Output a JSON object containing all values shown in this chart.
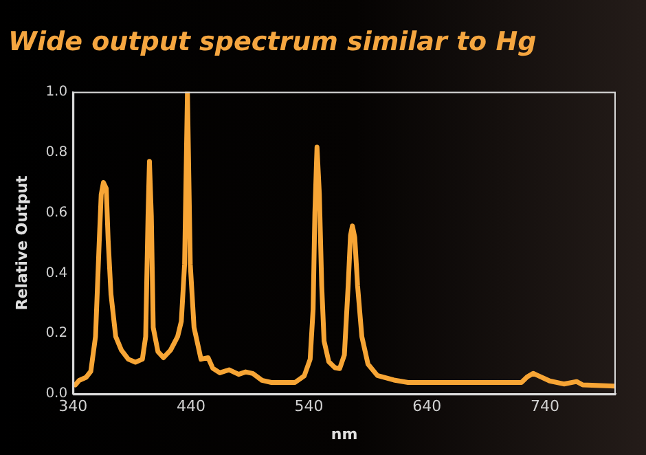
{
  "chart_data": {
    "type": "line",
    "title": "Wide output spectrum similar to Hg",
    "xlabel": "nm",
    "ylabel": "Relative Output",
    "xlim": [
      340,
      800
    ],
    "xticks": [
      340,
      440,
      540,
      640,
      740
    ],
    "ylim": [
      0,
      1
    ],
    "yticks": [
      {
        "value": 0,
        "label": "0.0"
      },
      {
        "value": 0.2,
        "label": "0.2"
      },
      {
        "value": 0.4,
        "label": "0.4"
      },
      {
        "value": 0.6,
        "label": "0.6"
      },
      {
        "value": 0.8,
        "label": "0.8"
      },
      {
        "value": 1,
        "label": "1.0"
      }
    ],
    "grid": false,
    "legend": false,
    "marker": "none",
    "line_style": "solid",
    "series": [
      {
        "color": "#f7a535",
        "x": [
          342,
          345.2,
          351.1,
          355.1,
          359.1,
          362.3,
          363.9,
          365.8,
          368.2,
          369.8,
          372.2,
          376.2,
          381,
          386.9,
          392.9,
          398.8,
          401.6,
          403.6,
          404.8,
          406.4,
          408,
          412,
          416.7,
          422.7,
          428.7,
          431.8,
          434.6,
          437,
          439.4,
          442.6,
          448.5,
          454.5,
          458.5,
          464.4,
          472.4,
          480.4,
          486.3,
          492.3,
          500.2,
          508.2,
          528.1,
          536,
          541,
          543.5,
          545,
          546.8,
          548.8,
          550.8,
          552.8,
          556.8,
          562,
          566,
          570,
          573.2,
          575.2,
          576.8,
          578.8,
          581.2,
          584.8,
          590,
          598,
          612,
          624,
          648,
          688,
          720,
          724.8,
          730,
          734,
          744,
          756,
          766.8,
          772,
          799.2
        ],
        "values": [
          0.03,
          0.045,
          0.055,
          0.075,
          0.19,
          0.51,
          0.66,
          0.7,
          0.68,
          0.51,
          0.33,
          0.19,
          0.145,
          0.115,
          0.105,
          0.115,
          0.19,
          0.59,
          0.77,
          0.59,
          0.22,
          0.14,
          0.12,
          0.145,
          0.19,
          0.24,
          0.43,
          1.0,
          0.43,
          0.22,
          0.115,
          0.12,
          0.085,
          0.07,
          0.08,
          0.065,
          0.073,
          0.068,
          0.045,
          0.038,
          0.038,
          0.06,
          0.115,
          0.28,
          0.6,
          0.817,
          0.662,
          0.358,
          0.175,
          0.107,
          0.087,
          0.084,
          0.129,
          0.358,
          0.525,
          0.556,
          0.518,
          0.358,
          0.19,
          0.099,
          0.061,
          0.046,
          0.038,
          0.038,
          0.038,
          0.038,
          0.056,
          0.068,
          0.061,
          0.043,
          0.033,
          0.041,
          0.03,
          0.026
        ]
      }
    ]
  }
}
